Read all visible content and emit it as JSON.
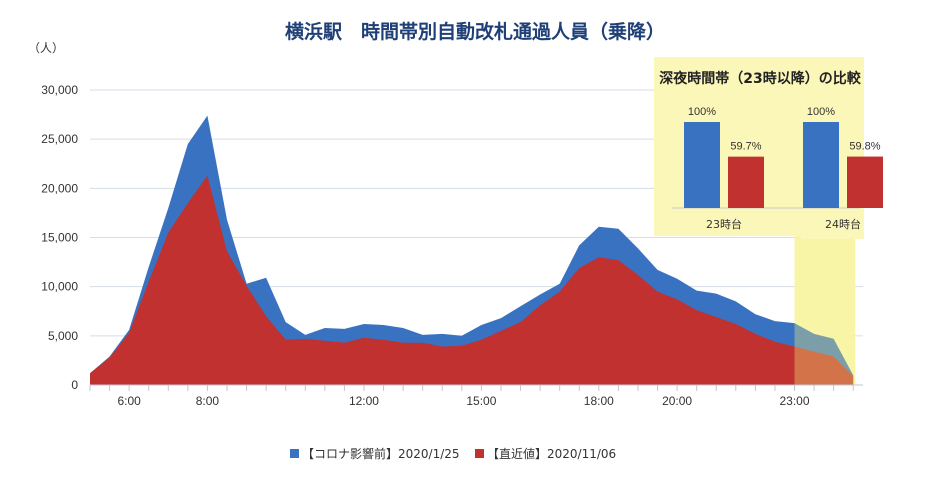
{
  "chart_data": {
    "type": "area",
    "title": "横浜駅　時間帯別自動改札通過人員（乗降）",
    "ylabel": "（人）",
    "ylim": [
      0,
      30000
    ],
    "yticks": [
      0,
      5000,
      10000,
      15000,
      20000,
      25000,
      30000
    ],
    "ytick_labels": [
      "0",
      "5,000",
      "10,000",
      "15,000",
      "20,000",
      "25,000",
      "30,000"
    ],
    "xlim": [
      5.0,
      24.75
    ],
    "xticks": [
      6,
      8,
      12,
      15,
      18,
      20,
      23
    ],
    "xtick_labels": [
      "6:00",
      "8:00",
      "12:00",
      "15:00",
      "18:00",
      "20:00",
      "23:00"
    ],
    "series": [
      {
        "name": "【コロナ影響前】2020/1/25",
        "color": "#3a72c2",
        "x": [
          5.0,
          5.5,
          6.0,
          6.5,
          7.0,
          7.5,
          8.0,
          8.5,
          9.0,
          9.5,
          10.0,
          10.5,
          11.0,
          11.5,
          12.0,
          12.5,
          13.0,
          13.5,
          14.0,
          14.5,
          15.0,
          15.5,
          16.0,
          16.5,
          17.0,
          17.5,
          18.0,
          18.5,
          19.0,
          19.5,
          20.0,
          20.5,
          21.0,
          21.5,
          22.0,
          22.5,
          23.0,
          23.5,
          24.0,
          24.5
        ],
        "values": [
          1200,
          2900,
          5600,
          12000,
          18000,
          24500,
          27400,
          16800,
          10300,
          10900,
          6400,
          5100,
          5800,
          5700,
          6200,
          6100,
          5800,
          5100,
          5200,
          5000,
          6100,
          6800,
          8000,
          9200,
          10300,
          14200,
          16100,
          15900,
          13900,
          11700,
          10800,
          9600,
          9300,
          8500,
          7200,
          6500,
          6300,
          5200,
          4700,
          1000
        ]
      },
      {
        "name": "【直近値】2020/11/06",
        "color": "#c0312f",
        "x": [
          5.0,
          5.5,
          6.0,
          6.5,
          7.0,
          7.5,
          8.0,
          8.5,
          9.0,
          9.5,
          10.0,
          10.5,
          11.0,
          11.5,
          12.0,
          12.5,
          13.0,
          13.5,
          14.0,
          14.5,
          15.0,
          15.5,
          16.0,
          16.5,
          17.0,
          17.5,
          18.0,
          18.5,
          19.0,
          19.5,
          20.0,
          20.5,
          21.0,
          21.5,
          22.0,
          22.5,
          23.0,
          23.5,
          24.0,
          24.5
        ],
        "values": [
          1200,
          2800,
          5300,
          10500,
          15500,
          18500,
          21300,
          13600,
          10100,
          7000,
          4600,
          4700,
          4500,
          4300,
          4800,
          4600,
          4300,
          4300,
          3900,
          4000,
          4600,
          5500,
          6400,
          8100,
          9500,
          11900,
          13000,
          12700,
          11200,
          9500,
          8700,
          7600,
          6900,
          6200,
          5200,
          4400,
          3900,
          3400,
          2900,
          900
        ]
      }
    ],
    "legend": "bottom-center",
    "highlight_region": {
      "from": 23.0,
      "to": 24.5
    },
    "inset": {
      "type": "bar",
      "title": "深夜時間帯（23時以降）の比較",
      "categories": [
        "23時台",
        "24時台"
      ],
      "series": [
        {
          "name": "【コロナ影響前】2020/1/25",
          "color": "#3a72c2",
          "values": [
            100,
            100
          ],
          "labels": [
            "100%",
            "100%"
          ]
        },
        {
          "name": "【直近値】2020/11/06",
          "color": "#c0312f",
          "values": [
            59.7,
            59.8
          ],
          "labels": [
            "59.7%",
            "59.8%"
          ]
        }
      ]
    }
  }
}
